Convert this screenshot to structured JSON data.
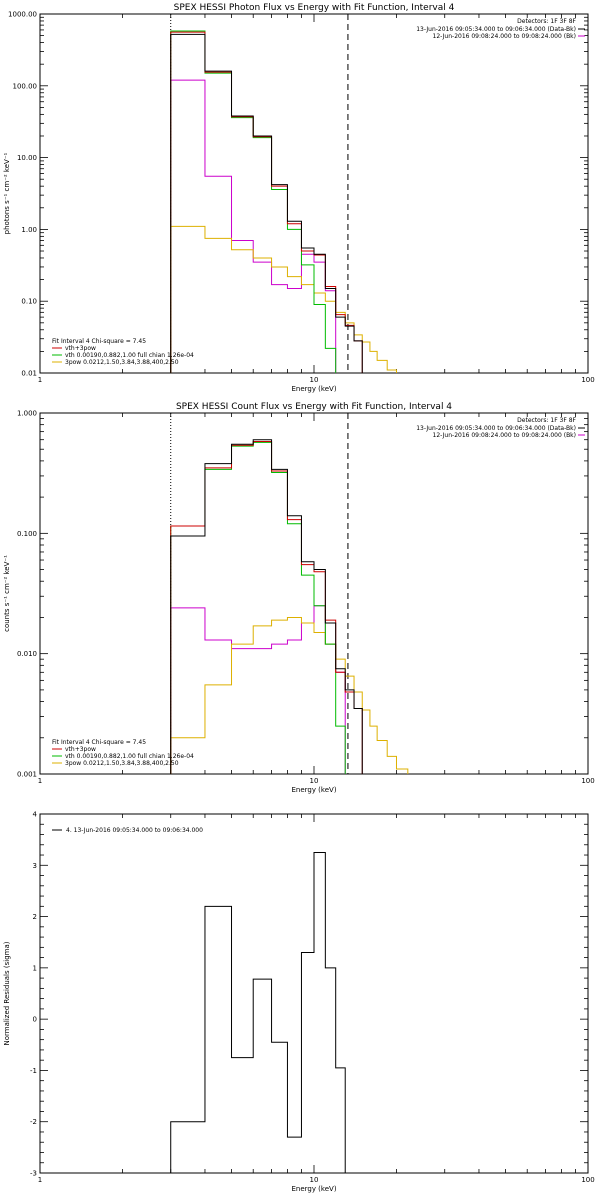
{
  "chart_data": [
    {
      "type": "line",
      "title": "SPEX HESSI Photon Flux vs Energy with Fit Function, Interval 4",
      "xlabel": "Energy (keV)",
      "ylabel": "photons s⁻¹ cm⁻² keV⁻¹",
      "xscale": "log",
      "yscale": "log",
      "xlim": [
        1,
        100
      ],
      "ylim": [
        0.01,
        1000
      ],
      "xticks": [
        1,
        10,
        100
      ],
      "xtick_labels": [
        "1",
        "10",
        "100"
      ],
      "yticks": [
        0.01,
        0.1,
        1,
        10,
        100,
        1000
      ],
      "ytick_labels": [
        "0.01",
        "0.10",
        "1.00",
        "10.00",
        "100.00",
        "1000.00"
      ],
      "legend_tr_header": "Detectors: 1F 3F 8F",
      "legend_tr": [
        {
          "label": "13-Jun-2016 09:05:34.000 to 09:06:34.000 (Data-Bk)",
          "color": "#000000"
        },
        {
          "label": "12-Jun-2016 09:08:24.000 to 09:08:24.000 (Bk)",
          "color": "#cc00cc"
        }
      ],
      "legend_bl_header": "Fit Interval  4   Chi-square = 7.45",
      "legend_bl": [
        {
          "label": "vth+3pow",
          "color": "#cc0000"
        },
        {
          "label": "vth 0.00190,0.882,1.00  full chian 1.26e-04",
          "color": "#00bb00"
        },
        {
          "label": "3pow 0.0212,1.50,3.84,3.88,400,2.50",
          "color": "#ddb000"
        }
      ],
      "vlines": [
        {
          "x": 3.0,
          "style": "dotted"
        },
        {
          "x": 13.3,
          "style": "dashed"
        }
      ],
      "bin_edges": [
        3.0,
        4.0,
        5.0,
        6.0,
        7.0,
        8.0,
        9.0,
        10.0,
        11.0,
        12.0,
        13.0,
        14.0,
        15.0,
        16.0,
        17.0,
        18.5,
        20.0,
        22.0
      ],
      "series": [
        {
          "name": "Data-Bk",
          "color": "#000000",
          "values": [
            520,
            160,
            38,
            20,
            4.2,
            1.3,
            0.55,
            0.45,
            0.15,
            0.06,
            0.045,
            0.028,
            null,
            null,
            null,
            null,
            null
          ]
        },
        {
          "name": "vth+3pow",
          "color": "#cc0000",
          "values": [
            560,
            155,
            37,
            19.5,
            4.0,
            1.2,
            0.5,
            0.44,
            0.16,
            0.065,
            0.046,
            0.028,
            null,
            null,
            null,
            null,
            null
          ]
        },
        {
          "name": "vth",
          "color": "#00bb00",
          "values": [
            580,
            150,
            36,
            19,
            3.6,
            1.0,
            0.32,
            0.09,
            0.022,
            0.003,
            null,
            null,
            null,
            null,
            null,
            null,
            null
          ]
        },
        {
          "name": "Bk",
          "color": "#cc00cc",
          "values": [
            120,
            5.5,
            0.7,
            0.35,
            0.17,
            0.15,
            0.45,
            0.35,
            0.14,
            null,
            null,
            null,
            null,
            null,
            null,
            null,
            null
          ]
        },
        {
          "name": "3pow",
          "color": "#ddb000",
          "values": [
            1.1,
            0.75,
            0.52,
            0.4,
            0.3,
            0.22,
            0.17,
            0.13,
            0.1,
            0.07,
            0.05,
            0.034,
            0.027,
            0.02,
            0.015,
            0.011,
            0.008
          ]
        }
      ]
    },
    {
      "type": "line",
      "title": "SPEX HESSI Count Flux vs Energy with Fit Function, Interval 4",
      "xlabel": "Energy (keV)",
      "ylabel": "counts s⁻¹ cm⁻² keV⁻¹",
      "xscale": "log",
      "yscale": "log",
      "xlim": [
        1,
        100
      ],
      "ylim": [
        0.001,
        1
      ],
      "xticks": [
        1,
        10,
        100
      ],
      "xtick_labels": [
        "1",
        "10",
        "100"
      ],
      "yticks": [
        0.001,
        0.01,
        0.1,
        1
      ],
      "ytick_labels": [
        "0.001",
        "0.010",
        "0.100",
        "1.000"
      ],
      "legend_tr_header": "Detectors: 1F 3F 8F",
      "legend_tr": [
        {
          "label": "13-Jun-2016 09:05:34.000 to 09:06:34.000 (Data-Bk)",
          "color": "#000000"
        },
        {
          "label": "12-Jun-2016 09:08:24.000 to 09:08:24.000 (Bk)",
          "color": "#cc00cc"
        }
      ],
      "legend_bl_header": "Fit Interval  4   Chi-square = 7.45",
      "legend_bl": [
        {
          "label": "vth+3pow",
          "color": "#cc0000"
        },
        {
          "label": "vth 0.00190,0.882,1.00  full chian 1.26e-04",
          "color": "#00bb00"
        },
        {
          "label": "3pow 0.0212,1.50,3.84,3.88,400,2.50",
          "color": "#ddb000"
        }
      ],
      "vlines": [
        {
          "x": 3.0,
          "style": "dotted"
        },
        {
          "x": 13.3,
          "style": "dashed"
        }
      ],
      "bin_edges": [
        3.0,
        4.0,
        5.0,
        6.0,
        7.0,
        8.0,
        9.0,
        10.0,
        11.0,
        12.0,
        13.0,
        14.0,
        15.0,
        16.0,
        17.0,
        18.5,
        20.0,
        22.0
      ],
      "series": [
        {
          "name": "Data-Bk",
          "color": "#000000",
          "values": [
            0.095,
            0.38,
            0.55,
            0.6,
            0.34,
            0.14,
            0.058,
            0.05,
            0.018,
            0.0075,
            0.005,
            0.0035,
            null,
            null,
            null,
            null,
            null
          ]
        },
        {
          "name": "vth+3pow",
          "color": "#cc0000",
          "values": [
            0.115,
            0.35,
            0.54,
            0.58,
            0.33,
            0.13,
            0.055,
            0.048,
            0.019,
            0.007,
            0.0048,
            0.0035,
            null,
            null,
            null,
            null,
            null
          ]
        },
        {
          "name": "vth",
          "color": "#00bb00",
          "values": [
            0.115,
            0.34,
            0.53,
            0.57,
            0.32,
            0.12,
            0.045,
            0.025,
            0.012,
            0.0025,
            null,
            null,
            null,
            null,
            null,
            null,
            null
          ]
        },
        {
          "name": "Bk",
          "color": "#cc00cc",
          "values": [
            0.024,
            0.013,
            0.011,
            0.011,
            0.012,
            0.013,
            0.018,
            0.025,
            0.012,
            0.007,
            null,
            null,
            null,
            null,
            null,
            null,
            null
          ]
        },
        {
          "name": "3pow",
          "color": "#ddb000",
          "values": [
            0.002,
            0.0055,
            0.012,
            0.017,
            0.019,
            0.02,
            0.018,
            0.015,
            0.012,
            0.009,
            0.0065,
            0.0048,
            0.0034,
            0.0025,
            0.0019,
            0.0014,
            0.0011
          ]
        }
      ]
    },
    {
      "type": "line",
      "title": "",
      "xlabel": "Energy (keV)",
      "ylabel": "Normalized Residuals (sigma)",
      "xscale": "log",
      "yscale": "linear",
      "xlim": [
        1,
        100
      ],
      "ylim": [
        -3,
        4
      ],
      "xticks": [
        1,
        10,
        100
      ],
      "xtick_labels": [
        "1",
        "10",
        "100"
      ],
      "yticks": [
        -3,
        -2,
        -1,
        0,
        1,
        2,
        3,
        4
      ],
      "ytick_labels": [
        "-3",
        "-2",
        "-1",
        "0",
        "1",
        "2",
        "3",
        "4"
      ],
      "legend_tl": [
        {
          "label": "4. 13-Jun-2016 09:05:34.000 to 09:06:34.000",
          "color": "#000000"
        }
      ],
      "bin_edges": [
        3.0,
        4.0,
        5.0,
        6.0,
        7.0,
        8.0,
        9.0,
        10.0,
        11.0,
        12.0,
        13.0
      ],
      "series": [
        {
          "name": "4. 13-Jun-2016 09:05:34.000 to 09:06:34.000",
          "color": "#000000",
          "values": [
            -2.0,
            2.2,
            -0.75,
            0.78,
            -0.45,
            -2.3,
            1.3,
            3.25,
            1.0,
            -0.95
          ]
        }
      ]
    }
  ]
}
